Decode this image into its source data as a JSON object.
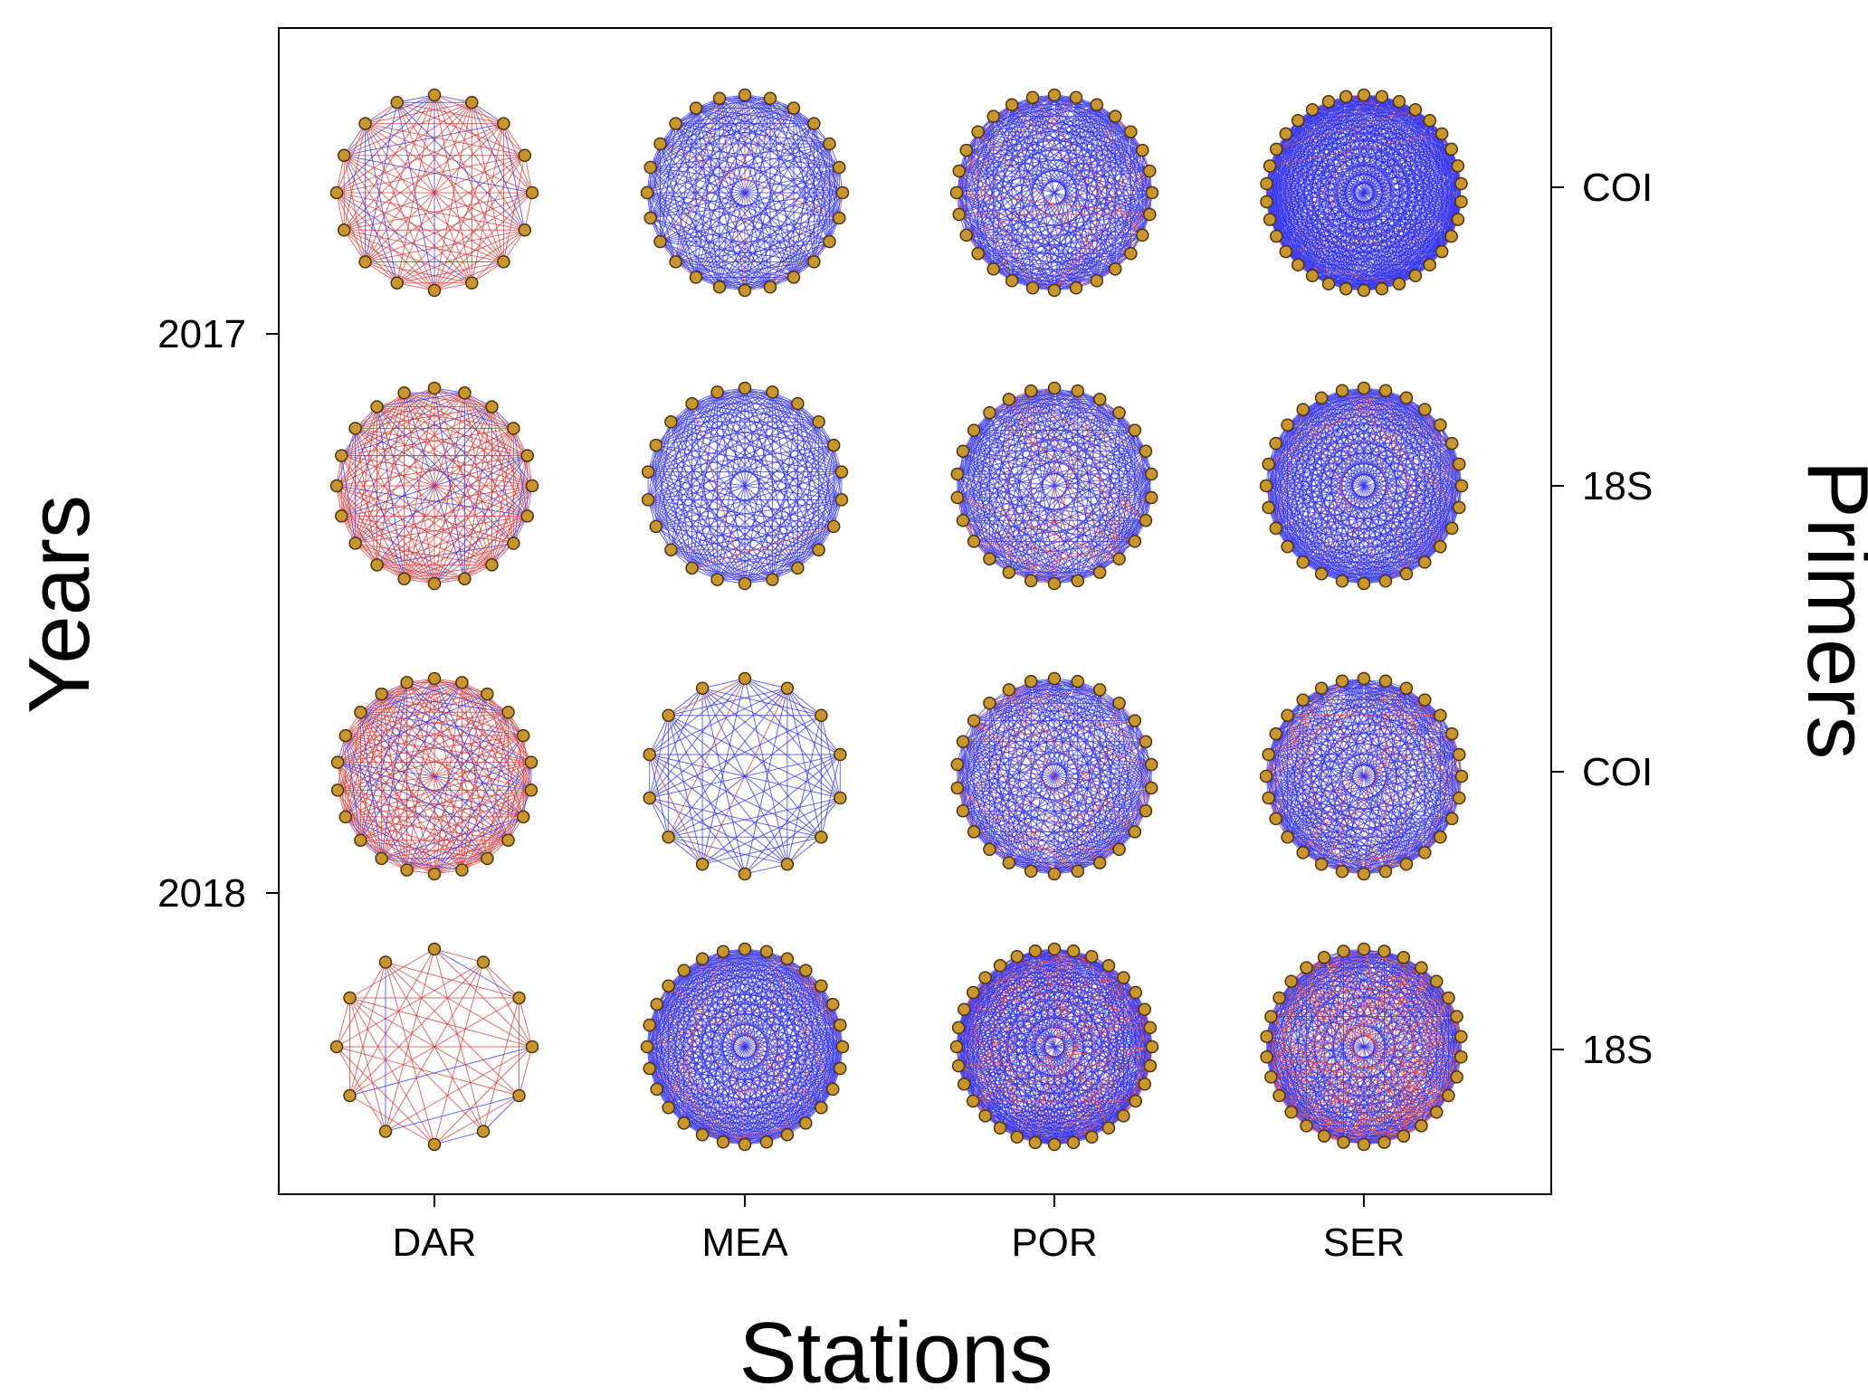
{
  "figure": {
    "x_axis_title": "Stations",
    "left_axis_title": "Years",
    "right_axis_title": "Primers",
    "stations": [
      "DAR",
      "MEA",
      "POR",
      "SER"
    ],
    "years": [
      "2017",
      "2018"
    ],
    "primers": [
      "COI",
      "18S",
      "COI",
      "18S"
    ],
    "colors": {
      "positive_edge": "#3333ee",
      "negative_edge": "#d43c3c",
      "node_fill": "#c8952e",
      "node_stroke": "#4a3410",
      "frame": "#000000"
    }
  },
  "chart_data": {
    "type": "network-grid",
    "rows": [
      {
        "year": "2017",
        "primer": "COI"
      },
      {
        "year": "2017",
        "primer": "18S"
      },
      {
        "year": "2018",
        "primer": "COI"
      },
      {
        "year": "2018",
        "primer": "18S"
      }
    ],
    "columns": [
      "DAR",
      "MEA",
      "POR",
      "SER"
    ],
    "networks": [
      {
        "row": 0,
        "col": 0,
        "nodes": 16,
        "edges": 110,
        "negative_share": 0.8
      },
      {
        "row": 0,
        "col": 1,
        "nodes": 24,
        "edges": 230,
        "negative_share": 0.05
      },
      {
        "row": 0,
        "col": 2,
        "nodes": 28,
        "edges": 320,
        "negative_share": 0.12
      },
      {
        "row": 0,
        "col": 3,
        "nodes": 34,
        "edges": 520,
        "negative_share": 0.03
      },
      {
        "row": 1,
        "col": 0,
        "nodes": 20,
        "edges": 170,
        "negative_share": 0.75
      },
      {
        "row": 1,
        "col": 1,
        "nodes": 22,
        "edges": 210,
        "negative_share": 0.03
      },
      {
        "row": 1,
        "col": 2,
        "nodes": 26,
        "edges": 280,
        "negative_share": 0.15
      },
      {
        "row": 1,
        "col": 3,
        "nodes": 28,
        "edges": 360,
        "negative_share": 0.05
      },
      {
        "row": 2,
        "col": 0,
        "nodes": 22,
        "edges": 200,
        "negative_share": 0.7
      },
      {
        "row": 2,
        "col": 1,
        "nodes": 14,
        "edges": 75,
        "negative_share": 0.06
      },
      {
        "row": 2,
        "col": 2,
        "nodes": 26,
        "edges": 280,
        "negative_share": 0.1
      },
      {
        "row": 2,
        "col": 3,
        "nodes": 28,
        "edges": 320,
        "negative_share": 0.12
      },
      {
        "row": 3,
        "col": 0,
        "nodes": 12,
        "edges": 46,
        "negative_share": 0.85
      },
      {
        "row": 3,
        "col": 1,
        "nodes": 28,
        "edges": 360,
        "negative_share": 0.05
      },
      {
        "row": 3,
        "col": 2,
        "nodes": 32,
        "edges": 440,
        "negative_share": 0.15
      },
      {
        "row": 3,
        "col": 3,
        "nodes": 30,
        "edges": 400,
        "negative_share": 0.3
      }
    ]
  }
}
